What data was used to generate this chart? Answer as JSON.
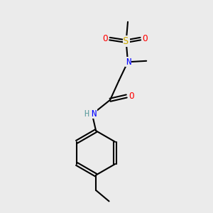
{
  "background_color": "#ebebeb",
  "atom_colors": {
    "C": "#000000",
    "N": "#0000ff",
    "O": "#ff0000",
    "S": "#ccaa00",
    "H": "#5f9ea0"
  },
  "bond_color": "#000000",
  "bond_width": 1.5
}
